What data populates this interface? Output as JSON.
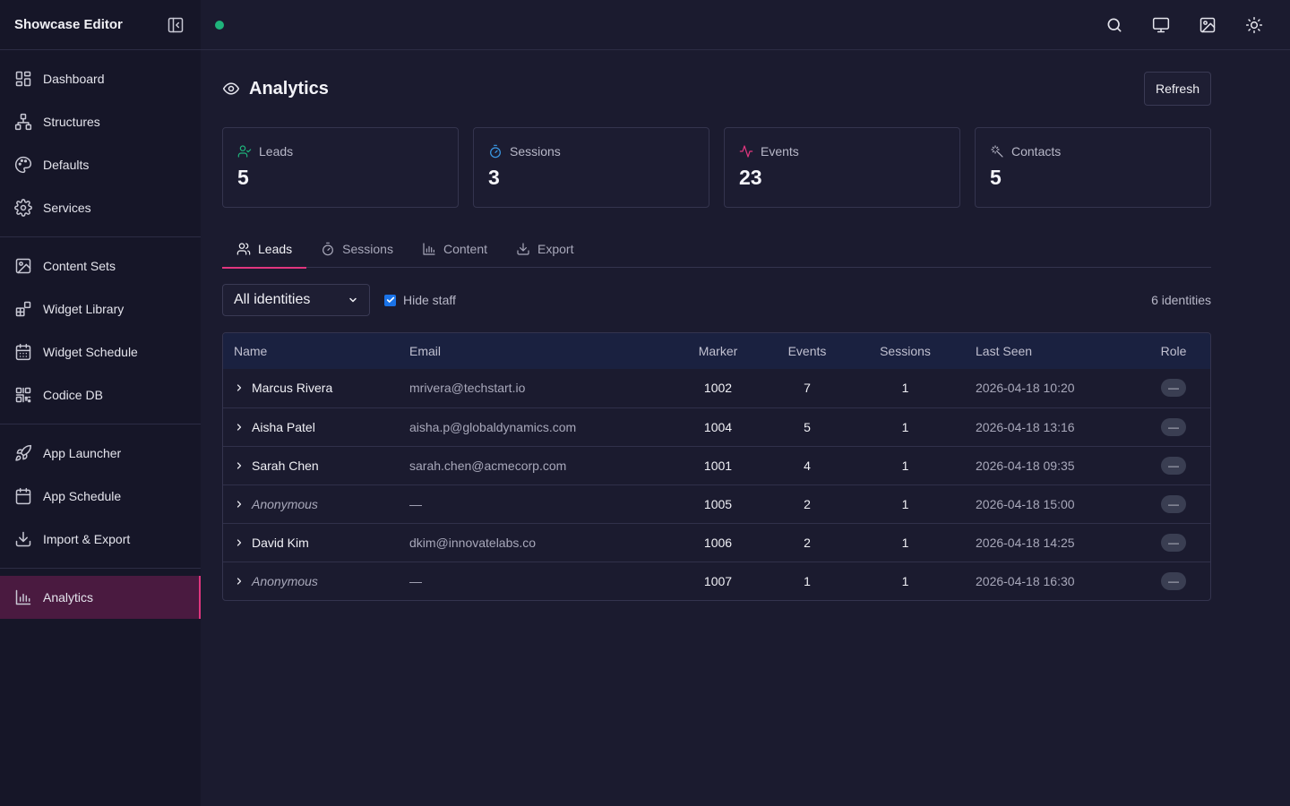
{
  "sidebar": {
    "title": "Showcase Editor",
    "groups": [
      [
        {
          "label": "Dashboard",
          "icon": "dashboard-icon"
        },
        {
          "label": "Structures",
          "icon": "structures-icon"
        },
        {
          "label": "Defaults",
          "icon": "palette-icon"
        },
        {
          "label": "Services",
          "icon": "gear-icon"
        }
      ],
      [
        {
          "label": "Content Sets",
          "icon": "image-icon"
        },
        {
          "label": "Widget Library",
          "icon": "widget-icon"
        },
        {
          "label": "Widget Schedule",
          "icon": "calendar-grid-icon"
        },
        {
          "label": "Codice DB",
          "icon": "qr-icon"
        }
      ],
      [
        {
          "label": "App Launcher",
          "icon": "rocket-icon"
        },
        {
          "label": "App Schedule",
          "icon": "calendar-icon"
        },
        {
          "label": "Import & Export",
          "icon": "download-icon"
        }
      ],
      [
        {
          "label": "Analytics",
          "icon": "bar-chart-icon",
          "active": true
        }
      ]
    ]
  },
  "topbar": {
    "status_color": "#1fb37b",
    "actions": [
      "search-icon",
      "monitor-icon",
      "image-icon",
      "sun-icon"
    ]
  },
  "page": {
    "title": "Analytics",
    "refresh_label": "Refresh"
  },
  "stats": [
    {
      "label": "Leads",
      "value": "5",
      "icon": "user-check-icon",
      "color": "#1fb37b"
    },
    {
      "label": "Sessions",
      "value": "3",
      "icon": "timer-icon",
      "color": "#3b9be8"
    },
    {
      "label": "Events",
      "value": "23",
      "icon": "activity-icon",
      "color": "#e0357e"
    },
    {
      "label": "Contacts",
      "value": "5",
      "icon": "sparkle-icon",
      "color": "#b8b8c8"
    }
  ],
  "tabs": [
    {
      "label": "Leads",
      "icon": "users-icon",
      "active": true
    },
    {
      "label": "Sessions",
      "icon": "timer-icon"
    },
    {
      "label": "Content",
      "icon": "bar-chart-icon"
    },
    {
      "label": "Export",
      "icon": "download-icon"
    }
  ],
  "filters": {
    "identity_select": "All identities",
    "hide_staff_label": "Hide staff",
    "hide_staff_checked": true,
    "count_label": "6 identities"
  },
  "table": {
    "columns": [
      "Name",
      "Email",
      "Marker",
      "Events",
      "Sessions",
      "Last Seen",
      "Role"
    ],
    "rows": [
      {
        "name": "Marcus Rivera",
        "anonymous": false,
        "email": "mrivera@techstart.io",
        "marker": "1002",
        "events": "7",
        "sessions": "1",
        "last_seen": "2026-04-18 10:20",
        "role": "—"
      },
      {
        "name": "Aisha Patel",
        "anonymous": false,
        "email": "aisha.p@globaldynamics.com",
        "marker": "1004",
        "events": "5",
        "sessions": "1",
        "last_seen": "2026-04-18 13:16",
        "role": "—"
      },
      {
        "name": "Sarah Chen",
        "anonymous": false,
        "email": "sarah.chen@acmecorp.com",
        "marker": "1001",
        "events": "4",
        "sessions": "1",
        "last_seen": "2026-04-18 09:35",
        "role": "—"
      },
      {
        "name": "Anonymous",
        "anonymous": true,
        "email": "—",
        "marker": "1005",
        "events": "2",
        "sessions": "1",
        "last_seen": "2026-04-18 15:00",
        "role": "—"
      },
      {
        "name": "David Kim",
        "anonymous": false,
        "email": "dkim@innovatelabs.co",
        "marker": "1006",
        "events": "2",
        "sessions": "1",
        "last_seen": "2026-04-18 14:25",
        "role": "—"
      },
      {
        "name": "Anonymous",
        "anonymous": true,
        "email": "—",
        "marker": "1007",
        "events": "1",
        "sessions": "1",
        "last_seen": "2026-04-18 16:30",
        "role": "—"
      }
    ]
  }
}
